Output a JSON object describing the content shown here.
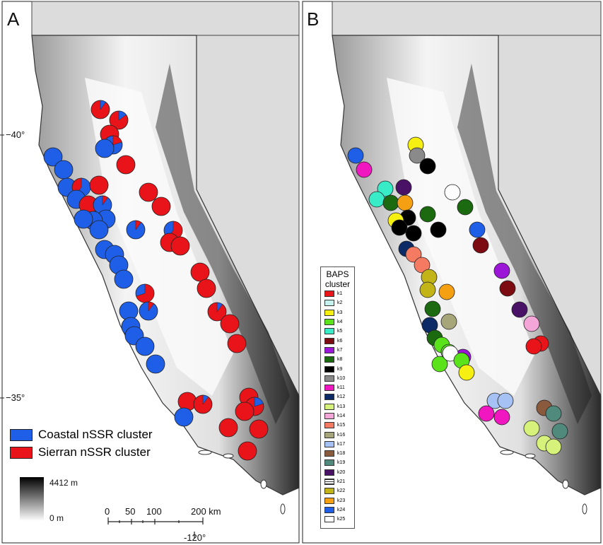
{
  "panels": {
    "a": "A",
    "b": "B"
  },
  "lat_labels": {
    "lat40": "−40°",
    "lat35": "−35°"
  },
  "lon_label": "-120°",
  "legend_a": {
    "coastal": {
      "label": "Coastal nSSR cluster",
      "color": "#1f5fe8"
    },
    "sierran": {
      "label": "Sierran nSSR cluster",
      "color": "#e8141a"
    }
  },
  "elevation": {
    "max": "4412 m",
    "min": "0 m"
  },
  "scale": {
    "labels": [
      "0",
      "50",
      "100",
      "200 km"
    ]
  },
  "baps": {
    "title": "BAPS cluster",
    "clusters": [
      {
        "label": "k1",
        "color": "#e8141a"
      },
      {
        "label": "k2",
        "color": "#c6f2ee"
      },
      {
        "label": "k3",
        "color": "#f5ef12"
      },
      {
        "label": "k4",
        "color": "#5ae21a"
      },
      {
        "label": "k5",
        "color": "#38ecc8"
      },
      {
        "label": "k6",
        "color": "#7d0c12"
      },
      {
        "label": "k7",
        "color": "#9c16d8"
      },
      {
        "label": "k8",
        "color": "#1b6a10"
      },
      {
        "label": "k9",
        "color": "#000000"
      },
      {
        "label": "k10",
        "color": "#8a8a8a"
      },
      {
        "label": "k11",
        "color": "#f016c0"
      },
      {
        "label": "k12",
        "color": "#0c2a66"
      },
      {
        "label": "k13",
        "color": "#d6f27a"
      },
      {
        "label": "k14",
        "color": "#f5a6d8"
      },
      {
        "label": "k15",
        "color": "#f57a62"
      },
      {
        "label": "k16",
        "color": "#a7a57a"
      },
      {
        "label": "k17",
        "color": "#a6c2f5"
      },
      {
        "label": "k18",
        "color": "#8a5a3c"
      },
      {
        "label": "k19",
        "color": "#4f8a7c"
      },
      {
        "label": "k20",
        "color": "#4a1266"
      },
      {
        "label": "k21",
        "color": "#ffffff"
      },
      {
        "label": "k22",
        "color": "#c2b416"
      },
      {
        "label": "k23",
        "color": "#f5a012"
      },
      {
        "label": "k24",
        "color": "#1f5fe8"
      },
      {
        "label": "k25",
        "color": "#ffffff"
      }
    ]
  }
}
